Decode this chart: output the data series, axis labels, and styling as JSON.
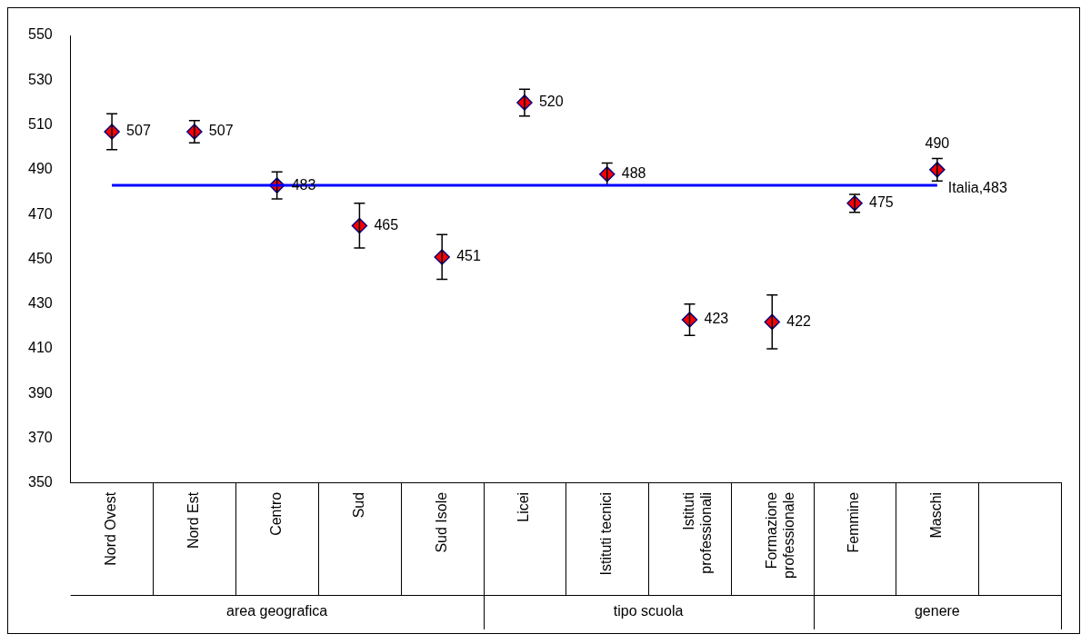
{
  "chart_data": {
    "type": "scatter",
    "categories": [
      "Nord Ovest",
      "Nord Est",
      "Centro",
      "Sud",
      "Sud Isole",
      "Licei",
      "Istituti tecnici",
      "Istituti professionali",
      "Formazione professionale",
      "Femmine",
      "Maschi",
      null
    ],
    "values": [
      507,
      507,
      483,
      465,
      451,
      520,
      488,
      423,
      422,
      475,
      490,
      null
    ],
    "errors": [
      8,
      5,
      6,
      10,
      10,
      6,
      5,
      7,
      12,
      4,
      5,
      null
    ],
    "color": "#ff0000",
    "marker": "diamond",
    "data_labels": true,
    "ylim": [
      350,
      550
    ],
    "yticks": [
      350,
      370,
      390,
      410,
      430,
      450,
      470,
      490,
      510,
      530,
      550
    ],
    "grid": false,
    "legend": false,
    "ref_lines": [
      {
        "axis": "y",
        "value": 483,
        "label": "Italia,483",
        "color": "#0000ff"
      }
    ],
    "annotations": [
      "area geografica",
      "tipo scuola",
      "genere"
    ]
  }
}
